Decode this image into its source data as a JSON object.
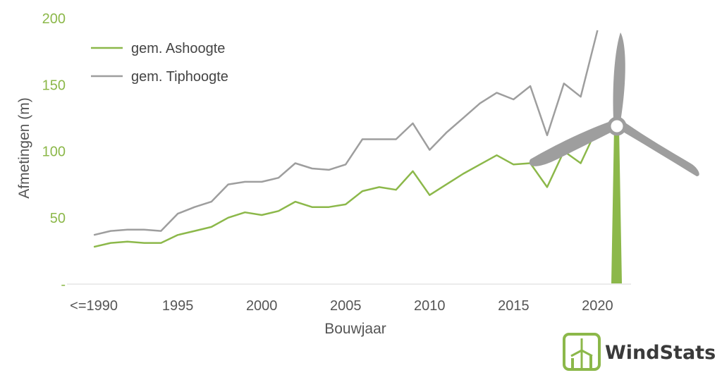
{
  "chart_data": {
    "type": "line",
    "title": "",
    "xlabel": "Bouwjaar",
    "ylabel": "Afmetingen (m)",
    "ylim": [
      0,
      200
    ],
    "xlim": [
      1988.4,
      2022
    ],
    "grid": false,
    "legend_position": "top-left",
    "yticks": [
      {
        "value": 0,
        "label": "-"
      },
      {
        "value": 50,
        "label": "50"
      },
      {
        "value": 100,
        "label": "100"
      },
      {
        "value": 150,
        "label": "150"
      },
      {
        "value": 200,
        "label": "200"
      }
    ],
    "xticks": [
      {
        "value": 1990,
        "label": "<=1990"
      },
      {
        "value": 1995,
        "label": "1995"
      },
      {
        "value": 2000,
        "label": "2000"
      },
      {
        "value": 2005,
        "label": "2005"
      },
      {
        "value": 2010,
        "label": "2010"
      },
      {
        "value": 2015,
        "label": "2015"
      },
      {
        "value": 2020,
        "label": "2020"
      }
    ],
    "series": [
      {
        "name": "gem. Ashoogte",
        "color": "#8cb84a",
        "x": [
          1990,
          1991,
          1992,
          1993,
          1994,
          1995,
          1996,
          1997,
          1998,
          1999,
          2000,
          2001,
          2002,
          2003,
          2004,
          2005,
          2006,
          2007,
          2008,
          2009,
          2010,
          2011,
          2012,
          2013,
          2014,
          2015,
          2016,
          2017,
          2018,
          2019,
          2020
        ],
        "values": [
          28,
          31,
          32,
          31,
          31,
          37,
          40,
          43,
          50,
          54,
          52,
          55,
          62,
          58,
          58,
          60,
          70,
          73,
          71,
          85,
          67,
          75,
          83,
          90,
          97,
          90,
          91,
          73,
          100,
          91,
          118
        ]
      },
      {
        "name": "gem. Tiphoogte",
        "color": "#9e9e9e",
        "x": [
          1990,
          1991,
          1992,
          1993,
          1994,
          1995,
          1996,
          1997,
          1998,
          1999,
          2000,
          2001,
          2002,
          2003,
          2004,
          2005,
          2006,
          2007,
          2008,
          2009,
          2010,
          2011,
          2012,
          2013,
          2014,
          2015,
          2016,
          2017,
          2018,
          2019,
          2020
        ],
        "values": [
          37,
          40,
          41,
          41,
          40,
          53,
          58,
          62,
          75,
          77,
          77,
          80,
          91,
          87,
          86,
          90,
          109,
          109,
          109,
          121,
          101,
          114,
          125,
          136,
          144,
          139,
          149,
          112,
          151,
          141,
          191
        ]
      }
    ]
  },
  "logo": {
    "text": "WindStats",
    "accent_color": "#8cb84a",
    "icon": "wind-turbine-icon"
  },
  "decoration": {
    "turbine_icon": "wind-turbine-icon",
    "blade_color": "#9e9e9e",
    "tower_color": "#8cb84a"
  }
}
